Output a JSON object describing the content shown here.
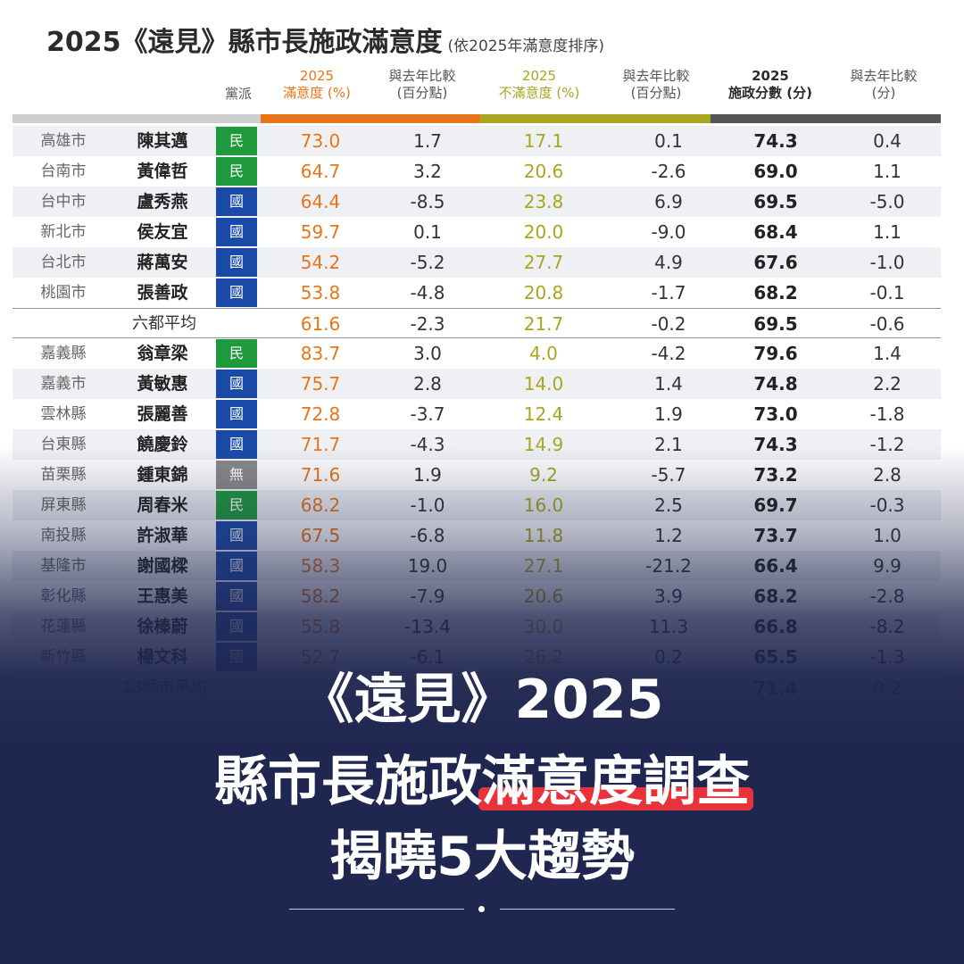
{
  "title": "2025《遠見》縣市長施政滿意度",
  "subtitle": "(依2025年滿意度排序)",
  "headers": {
    "party": "黨派",
    "sat_year": "2025",
    "sat_label": "滿意度 (%)",
    "sat_diff_1": "與去年比較",
    "sat_diff_2": "(百分點)",
    "dis_year": "2025",
    "dis_label": "不滿意度 (%)",
    "dis_diff_1": "與去年比較",
    "dis_diff_2": "(百分點)",
    "score_year": "2025",
    "score_label": "施政分數 (分)",
    "score_diff_1": "與去年比較",
    "score_diff_2": "(分)"
  },
  "colors": {
    "orange": "#e8751a",
    "olive": "#a8a61f",
    "dark": "#555555",
    "dpp": "#1e9a3c",
    "kmt": "#1a4aa8",
    "ind": "#8a8a8a",
    "navy": "#1f264f",
    "highlight": "#e8323c"
  },
  "rows": [
    {
      "city": "高雄市",
      "name": "陳其邁",
      "party": "民",
      "pk": "dpp",
      "sat": "73.0",
      "satd": "1.7",
      "dis": "17.1",
      "disd": "0.1",
      "sc": "74.3",
      "scd": "0.4"
    },
    {
      "city": "台南市",
      "name": "黃偉哲",
      "party": "民",
      "pk": "dpp",
      "sat": "64.7",
      "satd": "3.2",
      "dis": "20.6",
      "disd": "-2.6",
      "sc": "69.0",
      "scd": "1.1"
    },
    {
      "city": "台中市",
      "name": "盧秀燕",
      "party": "國",
      "pk": "kmt",
      "sat": "64.4",
      "satd": "-8.5",
      "dis": "23.8",
      "disd": "6.9",
      "sc": "69.5",
      "scd": "-5.0"
    },
    {
      "city": "新北市",
      "name": "侯友宜",
      "party": "國",
      "pk": "kmt",
      "sat": "59.7",
      "satd": "0.1",
      "dis": "20.0",
      "disd": "-9.0",
      "sc": "68.4",
      "scd": "1.1"
    },
    {
      "city": "台北市",
      "name": "蔣萬安",
      "party": "國",
      "pk": "kmt",
      "sat": "54.2",
      "satd": "-5.2",
      "dis": "27.7",
      "disd": "4.9",
      "sc": "67.6",
      "scd": "-1.0"
    },
    {
      "city": "桃園市",
      "name": "張善政",
      "party": "國",
      "pk": "kmt",
      "sat": "53.8",
      "satd": "-4.8",
      "dis": "20.8",
      "disd": "-1.7",
      "sc": "68.2",
      "scd": "-0.1"
    },
    {
      "avg": "六都平均",
      "sat": "61.6",
      "satd": "-2.3",
      "dis": "21.7",
      "disd": "-0.2",
      "sc": "69.5",
      "scd": "-0.6"
    },
    {
      "city": "嘉義縣",
      "name": "翁章梁",
      "party": "民",
      "pk": "dpp",
      "sat": "83.7",
      "satd": "3.0",
      "dis": "4.0",
      "disd": "-4.2",
      "sc": "79.6",
      "scd": "1.4"
    },
    {
      "city": "嘉義市",
      "name": "黃敏惠",
      "party": "國",
      "pk": "kmt",
      "sat": "75.7",
      "satd": "2.8",
      "dis": "14.0",
      "disd": "1.4",
      "sc": "74.8",
      "scd": "2.2"
    },
    {
      "city": "雲林縣",
      "name": "張麗善",
      "party": "國",
      "pk": "kmt",
      "sat": "72.8",
      "satd": "-3.7",
      "dis": "12.4",
      "disd": "1.9",
      "sc": "73.0",
      "scd": "-1.8"
    },
    {
      "city": "台東縣",
      "name": "饒慶鈴",
      "party": "國",
      "pk": "kmt",
      "sat": "71.7",
      "satd": "-4.3",
      "dis": "14.9",
      "disd": "2.1",
      "sc": "74.3",
      "scd": "-1.2"
    },
    {
      "city": "苗栗縣",
      "name": "鍾東錦",
      "party": "無",
      "pk": "ind",
      "sat": "71.6",
      "satd": "1.9",
      "dis": "9.2",
      "disd": "-5.7",
      "sc": "73.2",
      "scd": "2.8"
    },
    {
      "city": "屏東縣",
      "name": "周春米",
      "party": "民",
      "pk": "dpp",
      "sat": "68.2",
      "satd": "-1.0",
      "dis": "16.0",
      "disd": "2.5",
      "sc": "69.7",
      "scd": "-0.3"
    },
    {
      "city": "南投縣",
      "name": "許淑華",
      "party": "國",
      "pk": "kmt",
      "sat": "67.5",
      "satd": "-6.8",
      "dis": "11.8",
      "disd": "1.2",
      "sc": "73.7",
      "scd": "1.0"
    },
    {
      "city": "基隆市",
      "name": "謝國樑",
      "party": "國",
      "pk": "kmt",
      "sat": "58.3",
      "satd": "19.0",
      "dis": "27.1",
      "disd": "-21.2",
      "sc": "66.4",
      "scd": "9.9"
    },
    {
      "city": "彰化縣",
      "name": "王惠美",
      "party": "國",
      "pk": "kmt",
      "sat": "58.2",
      "satd": "-7.9",
      "dis": "20.6",
      "disd": "3.9",
      "sc": "68.2",
      "scd": "-2.8"
    },
    {
      "city": "花蓮縣",
      "name": "徐榛蔚",
      "party": "國",
      "pk": "kmt",
      "sat": "55.8",
      "satd": "-13.4",
      "dis": "30.0",
      "disd": "11.3",
      "sc": "66.8",
      "scd": "-8.2"
    },
    {
      "city": "新竹縣",
      "name": "楊文科",
      "party": "國",
      "pk": "kmt",
      "sat": "52.7",
      "satd": "-6.1",
      "dis": "26.2",
      "disd": "0.2",
      "sc": "65.5",
      "scd": "-1.3"
    },
    {
      "avg": "13縣市平均",
      "sat": "",
      "satd": "",
      "dis": "",
      "disd": "",
      "sc": "71.4",
      "scd": "0.2"
    }
  ],
  "headline": {
    "line1": "《遠見》2025",
    "line2_pre": "縣市長施政",
    "line2_mark": "滿意度調查",
    "line3": "揭曉5大趨勢"
  }
}
